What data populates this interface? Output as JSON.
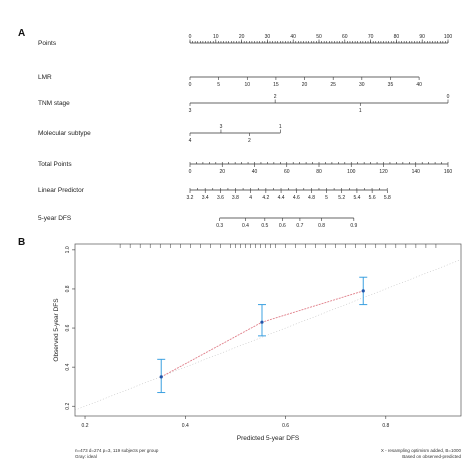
{
  "panels": {
    "a_label": "A",
    "b_label": "B"
  },
  "chart_data": [
    {
      "type": "nomogram",
      "rows": [
        {
          "name": "Points",
          "ticks": [
            {
              "v": 0,
              "label": "0"
            },
            {
              "v": 10,
              "label": "10"
            },
            {
              "v": 20,
              "label": "20"
            },
            {
              "v": 30,
              "label": "30"
            },
            {
              "v": 40,
              "label": "40"
            },
            {
              "v": 50,
              "label": "50"
            },
            {
              "v": 60,
              "label": "60"
            },
            {
              "v": 70,
              "label": "70"
            },
            {
              "v": 80,
              "label": "80"
            },
            {
              "v": 90,
              "label": "90"
            },
            {
              "v": 100,
              "label": "100"
            }
          ],
          "minor": 1
        },
        {
          "name": "LMR",
          "ticks": [
            {
              "v": 0,
              "label": "0"
            },
            {
              "v": 11.1,
              "label": "5"
            },
            {
              "v": 22.2,
              "label": "10"
            },
            {
              "v": 33.3,
              "label": "15"
            },
            {
              "v": 44.4,
              "label": "20"
            },
            {
              "v": 55.5,
              "label": "25"
            },
            {
              "v": 66.6,
              "label": "30"
            },
            {
              "v": 77.7,
              "label": "35"
            },
            {
              "v": 88.8,
              "label": "40"
            }
          ],
          "below": true
        },
        {
          "name": "TNM stage",
          "ticks": [
            {
              "v": 0,
              "label": "3",
              "below": true
            },
            {
              "v": 33,
              "label": "2"
            },
            {
              "v": 66,
              "label": "1",
              "below": true
            },
            {
              "v": 100,
              "label": "0"
            }
          ]
        },
        {
          "name": "Molecular subtype",
          "ticks": [
            {
              "v": 0,
              "label": "4",
              "below": true
            },
            {
              "v": 12,
              "label": "3"
            },
            {
              "v": 23,
              "label": "2",
              "below": true
            },
            {
              "v": 35,
              "label": "1"
            }
          ]
        },
        {
          "name": "Total Points",
          "ticks": [
            {
              "v": 0,
              "label": "0"
            },
            {
              "v": 12.5,
              "label": "20"
            },
            {
              "v": 25,
              "label": "40"
            },
            {
              "v": 37.5,
              "label": "60"
            },
            {
              "v": 50,
              "label": "80"
            },
            {
              "v": 62.5,
              "label": "100"
            },
            {
              "v": 75,
              "label": "120"
            },
            {
              "v": 87.5,
              "label": "140"
            },
            {
              "v": 100,
              "label": "160"
            }
          ],
          "below": true,
          "minor": 2.5
        },
        {
          "name": "Linear Predictor",
          "ticks": [
            {
              "v": 0,
              "label": "3.2"
            },
            {
              "v": 5.9,
              "label": "3.4"
            },
            {
              "v": 11.8,
              "label": "3.6"
            },
            {
              "v": 17.6,
              "label": "3.8"
            },
            {
              "v": 23.5,
              "label": "4"
            },
            {
              "v": 29.4,
              "label": "4.2"
            },
            {
              "v": 35.3,
              "label": "4.4"
            },
            {
              "v": 41.2,
              "label": "4.6"
            },
            {
              "v": 47.1,
              "label": "4.8"
            },
            {
              "v": 52.9,
              "label": "5"
            },
            {
              "v": 58.8,
              "label": "5.2"
            },
            {
              "v": 64.7,
              "label": "5.4"
            },
            {
              "v": 70.6,
              "label": "5.6"
            },
            {
              "v": 76.5,
              "label": "5.8"
            }
          ],
          "below": true,
          "minor": 2.94
        },
        {
          "name": "5-year DFS",
          "ticks": [
            {
              "v": 11.5,
              "label": "0.3"
            },
            {
              "v": 21.5,
              "label": "0.4"
            },
            {
              "v": 29,
              "label": "0.5"
            },
            {
              "v": 35.8,
              "label": "0.6"
            },
            {
              "v": 42.6,
              "label": "0.7"
            },
            {
              "v": 51,
              "label": "0.8"
            },
            {
              "v": 63.5,
              "label": "0.9"
            }
          ],
          "below": true
        }
      ]
    },
    {
      "type": "scatter",
      "xlabel": "Predicted 5-year DFS",
      "ylabel": "Observed 5-year DFS",
      "xlim": [
        0.18,
        0.95
      ],
      "ylim": [
        0.15,
        1.03
      ],
      "xticks": [
        {
          "v": 0.2,
          "label": "0.2"
        },
        {
          "v": 0.4,
          "label": "0.4"
        },
        {
          "v": 0.6,
          "label": "0.6"
        },
        {
          "v": 0.8,
          "label": "0.8"
        }
      ],
      "yticks": [
        {
          "v": 0.2,
          "label": "0.2"
        },
        {
          "v": 0.4,
          "label": "0.4"
        },
        {
          "v": 0.6,
          "label": "0.6"
        },
        {
          "v": 0.8,
          "label": "0.8"
        },
        {
          "v": 1.0,
          "label": "1.0"
        }
      ],
      "points": [
        {
          "x": 0.352,
          "y": 0.35,
          "lo": 0.27,
          "hi": 0.44
        },
        {
          "x": 0.553,
          "y": 0.63,
          "lo": 0.56,
          "hi": 0.72
        },
        {
          "x": 0.755,
          "y": 0.79,
          "lo": 0.72,
          "hi": 0.86
        }
      ],
      "rug": [
        0.27,
        0.29,
        0.31,
        0.33,
        0.35,
        0.37,
        0.39,
        0.41,
        0.43,
        0.45,
        0.47,
        0.49,
        0.5,
        0.51,
        0.52,
        0.53,
        0.54,
        0.55,
        0.56,
        0.57,
        0.58,
        0.6,
        0.62,
        0.64,
        0.66,
        0.68,
        0.7,
        0.72,
        0.74,
        0.76,
        0.78,
        0.8,
        0.82,
        0.84,
        0.86,
        0.88,
        0.9
      ],
      "footer_left_1": "n=473 d=274 p=3, 119 subjects per group",
      "footer_left_2": "Gray: ideal",
      "footer_right_1": "X - resampling optimism added, B=1000",
      "footer_right_2": "Based on observed-predicted",
      "colors": {
        "line": "#e07f8a",
        "point": "#2255aa",
        "error": "#3aa0e0",
        "ideal": "#999999"
      }
    }
  ]
}
